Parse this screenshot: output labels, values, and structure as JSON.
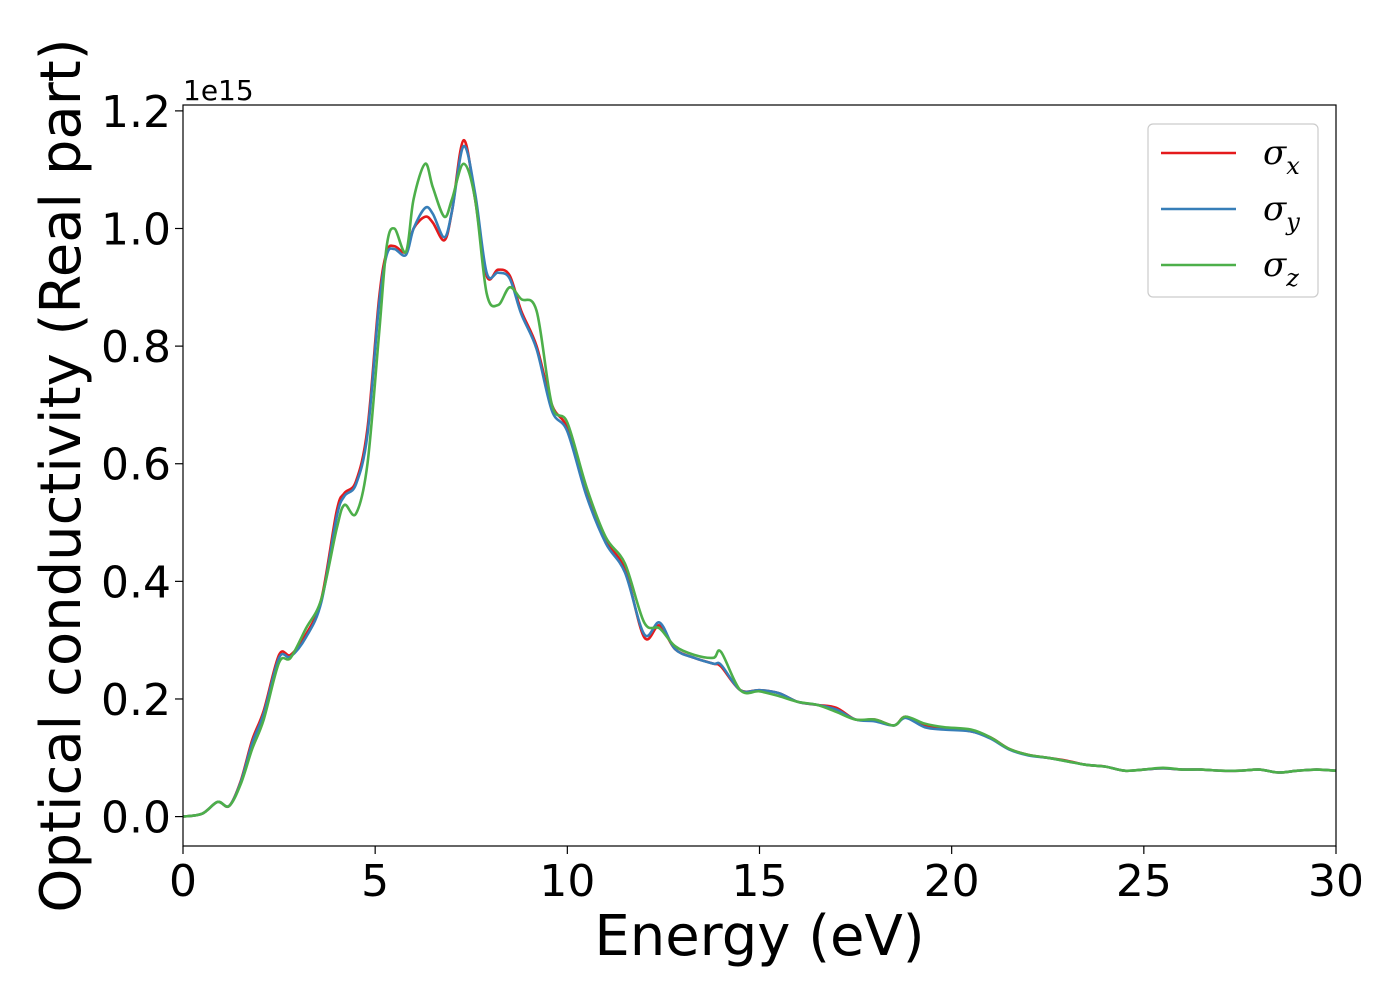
{
  "chart_data": {
    "type": "line",
    "xlabel": "Energy (eV)",
    "ylabel": "Optical conductivity (Real part)",
    "y_offset_label": "1e15",
    "xlim": [
      0,
      30
    ],
    "ylim": [
      -0.05,
      1.21
    ],
    "xticks": [
      0,
      5,
      10,
      15,
      20,
      25,
      30
    ],
    "xtick_labels": [
      "0",
      "5",
      "10",
      "15",
      "20",
      "25",
      "30"
    ],
    "yticks": [
      0.0,
      0.2,
      0.4,
      0.6,
      0.8,
      1.0,
      1.2
    ],
    "ytick_labels": [
      "0.0",
      "0.2",
      "0.4",
      "0.6",
      "0.8",
      "1.0",
      "1.2"
    ],
    "grid": false,
    "legend_position": "top-right",
    "series": [
      {
        "name": "σx",
        "legend_symbol": "σ",
        "legend_sub": "x",
        "color": "#e41a1c",
        "x": [
          0,
          0.5,
          0.9,
          1.2,
          1.5,
          1.8,
          2.1,
          2.5,
          2.8,
          3.2,
          3.6,
          4.0,
          4.2,
          4.5,
          4.8,
          5.1,
          5.3,
          5.5,
          5.8,
          6.0,
          6.3,
          6.5,
          6.8,
          7.0,
          7.3,
          7.6,
          7.9,
          8.2,
          8.5,
          8.8,
          9.2,
          9.6,
          10.0,
          10.5,
          11.0,
          11.5,
          12.0,
          12.4,
          12.8,
          13.3,
          13.8,
          14.0,
          14.5,
          15.0,
          15.5,
          16.0,
          16.5,
          17.0,
          17.5,
          18.0,
          18.5,
          18.8,
          19.3,
          19.8,
          20.5,
          21.0,
          21.5,
          22.0,
          22.5,
          23.0,
          23.5,
          24.0,
          24.5,
          25.0,
          25.5,
          26.0,
          26.5,
          27.0,
          27.5,
          28.0,
          28.5,
          29.0,
          29.5,
          30.0
        ],
        "values": [
          0.0,
          0.005,
          0.025,
          0.018,
          0.06,
          0.13,
          0.18,
          0.275,
          0.275,
          0.31,
          0.37,
          0.52,
          0.55,
          0.57,
          0.66,
          0.88,
          0.96,
          0.97,
          0.96,
          1.0,
          1.02,
          1.01,
          0.98,
          1.03,
          1.15,
          1.05,
          0.92,
          0.93,
          0.92,
          0.86,
          0.8,
          0.7,
          0.66,
          0.55,
          0.47,
          0.42,
          0.305,
          0.325,
          0.285,
          0.27,
          0.26,
          0.255,
          0.215,
          0.215,
          0.21,
          0.195,
          0.19,
          0.185,
          0.165,
          0.165,
          0.155,
          0.17,
          0.155,
          0.15,
          0.145,
          0.135,
          0.115,
          0.105,
          0.1,
          0.095,
          0.088,
          0.085,
          0.078,
          0.08,
          0.082,
          0.08,
          0.08,
          0.078,
          0.078,
          0.08,
          0.075,
          0.078,
          0.08,
          0.078
        ]
      },
      {
        "name": "σy",
        "legend_symbol": "σ",
        "legend_sub": "y",
        "color": "#377eb8",
        "x": [
          0,
          0.5,
          0.9,
          1.2,
          1.5,
          1.8,
          2.1,
          2.5,
          2.8,
          3.2,
          3.6,
          4.0,
          4.2,
          4.5,
          4.8,
          5.1,
          5.3,
          5.5,
          5.8,
          6.0,
          6.3,
          6.5,
          6.8,
          7.0,
          7.3,
          7.6,
          7.9,
          8.2,
          8.5,
          8.8,
          9.2,
          9.6,
          10.0,
          10.5,
          11.0,
          11.5,
          12.0,
          12.4,
          12.8,
          13.3,
          13.8,
          14.0,
          14.5,
          15.0,
          15.5,
          16.0,
          16.5,
          17.0,
          17.5,
          18.0,
          18.5,
          18.8,
          19.3,
          19.8,
          20.5,
          21.0,
          21.5,
          22.0,
          22.5,
          23.0,
          23.5,
          24.0,
          24.5,
          25.0,
          25.5,
          26.0,
          26.5,
          27.0,
          27.5,
          28.0,
          28.5,
          29.0,
          29.5,
          30.0
        ],
        "values": [
          0.0,
          0.005,
          0.025,
          0.018,
          0.058,
          0.125,
          0.175,
          0.27,
          0.272,
          0.305,
          0.365,
          0.51,
          0.545,
          0.565,
          0.65,
          0.87,
          0.955,
          0.965,
          0.955,
          1.0,
          1.035,
          1.025,
          0.985,
          1.03,
          1.14,
          1.06,
          0.925,
          0.925,
          0.915,
          0.855,
          0.795,
          0.69,
          0.655,
          0.545,
          0.465,
          0.415,
          0.31,
          0.33,
          0.285,
          0.27,
          0.26,
          0.258,
          0.215,
          0.215,
          0.21,
          0.195,
          0.19,
          0.182,
          0.165,
          0.162,
          0.155,
          0.168,
          0.152,
          0.148,
          0.145,
          0.133,
          0.114,
          0.104,
          0.1,
          0.094,
          0.088,
          0.085,
          0.078,
          0.08,
          0.082,
          0.08,
          0.08,
          0.078,
          0.078,
          0.08,
          0.075,
          0.078,
          0.08,
          0.078
        ]
      },
      {
        "name": "σz",
        "legend_symbol": "σ",
        "legend_sub": "z",
        "color": "#4daf4a",
        "x": [
          0,
          0.5,
          0.9,
          1.2,
          1.5,
          1.8,
          2.1,
          2.5,
          2.8,
          3.2,
          3.6,
          4.0,
          4.2,
          4.5,
          4.8,
          5.1,
          5.3,
          5.5,
          5.8,
          6.0,
          6.3,
          6.5,
          6.8,
          7.0,
          7.3,
          7.6,
          7.9,
          8.2,
          8.5,
          8.8,
          9.2,
          9.6,
          10.0,
          10.5,
          11.0,
          11.5,
          12.0,
          12.4,
          12.8,
          13.3,
          13.8,
          14.0,
          14.5,
          15.0,
          15.5,
          16.0,
          16.5,
          17.0,
          17.5,
          18.0,
          18.5,
          18.8,
          19.3,
          19.8,
          20.5,
          21.0,
          21.5,
          22.0,
          22.5,
          23.0,
          23.5,
          24.0,
          24.5,
          25.0,
          25.5,
          26.0,
          26.5,
          27.0,
          27.5,
          28.0,
          28.5,
          29.0,
          29.5,
          30.0
        ],
        "values": [
          0.0,
          0.005,
          0.025,
          0.018,
          0.055,
          0.115,
          0.165,
          0.262,
          0.27,
          0.32,
          0.37,
          0.49,
          0.53,
          0.515,
          0.6,
          0.82,
          0.97,
          1.0,
          0.96,
          1.05,
          1.11,
          1.07,
          1.02,
          1.05,
          1.11,
          1.05,
          0.89,
          0.87,
          0.9,
          0.88,
          0.86,
          0.7,
          0.67,
          0.56,
          0.475,
          0.43,
          0.33,
          0.32,
          0.29,
          0.275,
          0.27,
          0.28,
          0.215,
          0.213,
          0.205,
          0.195,
          0.19,
          0.178,
          0.165,
          0.165,
          0.155,
          0.17,
          0.158,
          0.152,
          0.148,
          0.135,
          0.115,
          0.105,
          0.1,
          0.094,
          0.088,
          0.085,
          0.078,
          0.08,
          0.083,
          0.08,
          0.08,
          0.078,
          0.078,
          0.08,
          0.075,
          0.078,
          0.08,
          0.078
        ]
      }
    ]
  }
}
